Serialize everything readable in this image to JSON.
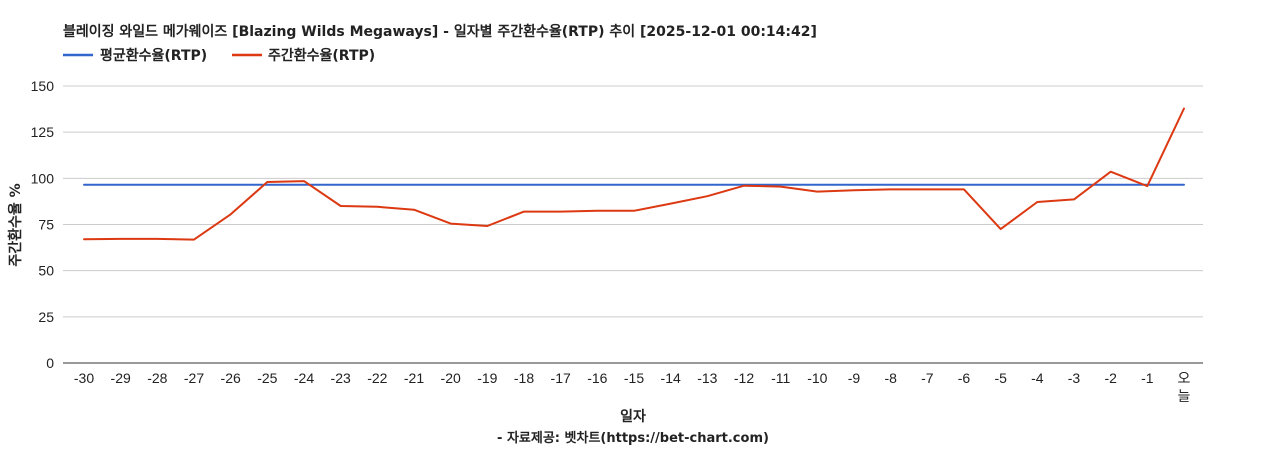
{
  "chart_data": {
    "type": "line",
    "title": "블레이징 와일드 메가웨이즈 [Blazing Wilds Megaways] - 일자별 주간환수율(RTP) 추이 [2025-12-01 00:14:42]",
    "xlabel": "일자",
    "ylabel": "주간환수율 %",
    "source": "- 자료제공: 벳차트(https://bet-chart.com)",
    "ylim": [
      0,
      150
    ],
    "yticks": [
      0,
      25,
      50,
      75,
      100,
      125,
      150
    ],
    "grid": true,
    "legend_position": "top-left",
    "categories": [
      "-30",
      "-29",
      "-28",
      "-27",
      "-26",
      "-25",
      "-24",
      "-23",
      "-22",
      "-21",
      "-20",
      "-19",
      "-18",
      "-17",
      "-16",
      "-15",
      "-14",
      "-13",
      "-12",
      "-11",
      "-10",
      "-9",
      "-8",
      "-7",
      "-6",
      "-5",
      "-4",
      "-3",
      "-2",
      "-1",
      "오늘"
    ],
    "series": [
      {
        "name": "평균환수율(RTP)",
        "color": "#3366cc",
        "values": [
          96.5,
          96.5,
          96.5,
          96.5,
          96.5,
          96.5,
          96.5,
          96.5,
          96.5,
          96.5,
          96.5,
          96.5,
          96.5,
          96.5,
          96.5,
          96.5,
          96.5,
          96.5,
          96.5,
          96.5,
          96.5,
          96.5,
          96.5,
          96.5,
          96.5,
          96.5,
          96.5,
          96.5,
          96.5,
          96.5,
          96.5
        ]
      },
      {
        "name": "주간환수율(RTP)",
        "color": "#dc3912",
        "values": [
          67,
          67.2,
          67.2,
          66.8,
          80.5,
          98,
          98.5,
          85,
          84.6,
          83,
          75.5,
          74.2,
          82,
          82,
          82.4,
          82.4,
          86.3,
          90.3,
          96,
          95.5,
          92.8,
          93.6,
          94,
          94,
          94,
          72.5,
          87.2,
          88.6,
          103.6,
          95.8,
          137.8
        ]
      }
    ]
  }
}
